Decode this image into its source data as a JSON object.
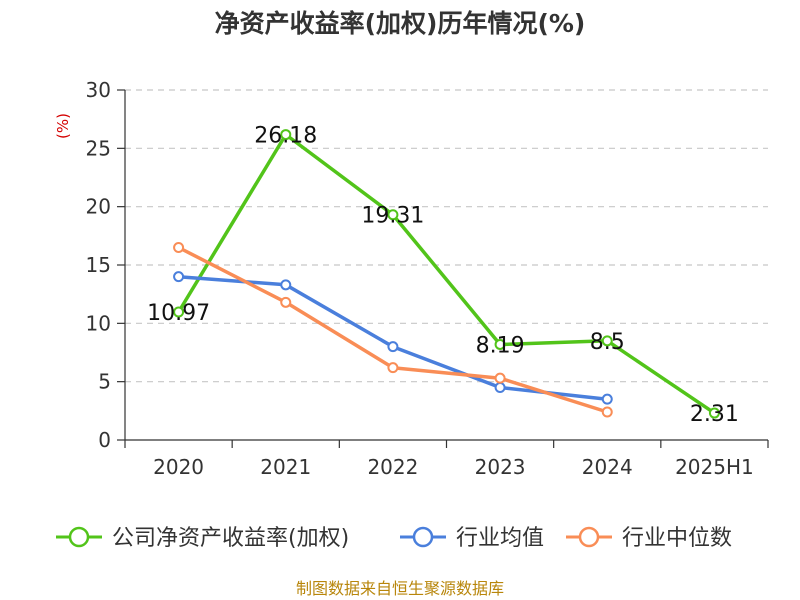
{
  "chart_data": {
    "type": "line",
    "title": "净资产收益率(加权)历年情况(%)",
    "ylabel": "(%)",
    "xlabel": "",
    "categories": [
      "2020",
      "2021",
      "2022",
      "2023",
      "2024",
      "2025H1"
    ],
    "ylim": [
      0,
      30
    ],
    "yticks": [
      0,
      5,
      10,
      15,
      20,
      25,
      30
    ],
    "grid": true,
    "legend_position": "bottom",
    "series": [
      {
        "name": "公司净资产收益率(加权)",
        "color": "#52c41a",
        "values": [
          10.97,
          26.18,
          19.31,
          8.19,
          8.5,
          2.31
        ],
        "labels": [
          "10.97",
          "26.18",
          "19.31",
          "8.19",
          "8.5",
          "2.31"
        ],
        "show_labels": true
      },
      {
        "name": "行业均值",
        "color": "#4a7fdc",
        "values": [
          14.0,
          13.3,
          8.0,
          4.5,
          3.5,
          null
        ],
        "show_labels": false
      },
      {
        "name": "行业中位数",
        "color": "#f98d56",
        "values": [
          16.5,
          11.8,
          6.2,
          5.3,
          2.4,
          null
        ],
        "show_labels": false
      }
    ]
  },
  "footer": {
    "source": "制图数据来自恒生聚源数据库"
  }
}
